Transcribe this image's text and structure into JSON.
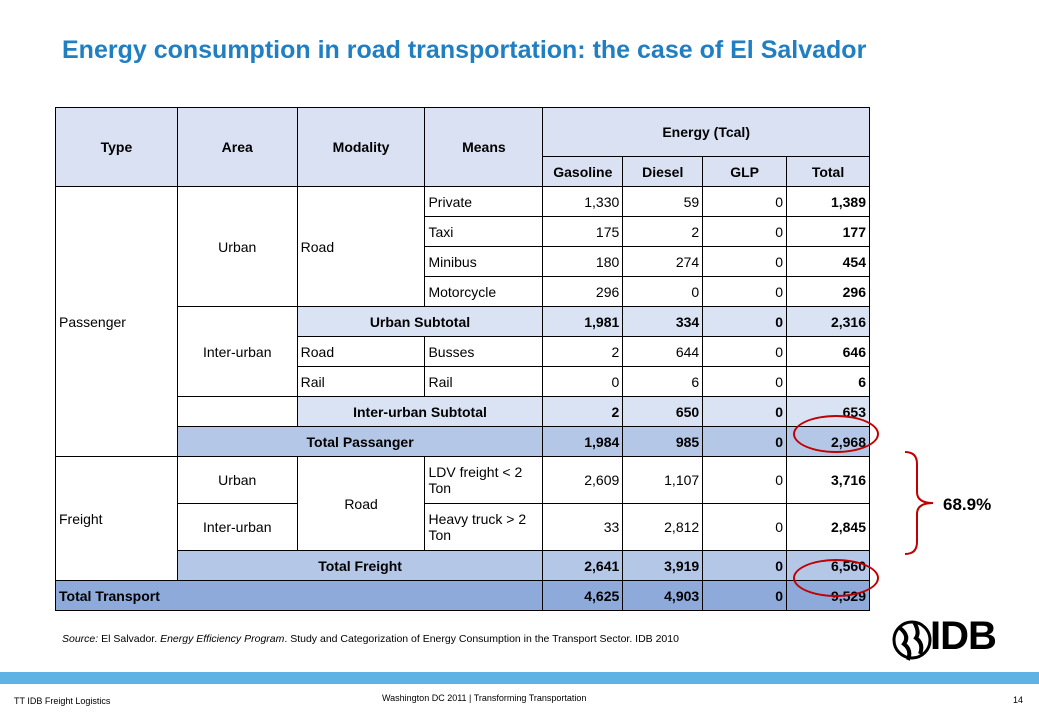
{
  "title": "Energy consumption in road transportation: the case of El Salvador",
  "table": {
    "headers": {
      "type": "Type",
      "area": "Area",
      "modality": "Modality",
      "means": "Means",
      "energy": "Energy (Tcal)",
      "gasoline": "Gasoline",
      "diesel": "Diesel",
      "glp": "GLP",
      "total": "Total"
    },
    "passenger": "Passenger",
    "urban": "Urban",
    "road": "Road",
    "inter_urban": "Inter-urban",
    "freight": "Freight",
    "rows": {
      "private": [
        "Private",
        "1,330",
        "59",
        "0",
        "1,389"
      ],
      "taxi": [
        "Taxi",
        "175",
        "2",
        "0",
        "177"
      ],
      "minibus": [
        "Minibus",
        "180",
        "274",
        "0",
        "454"
      ],
      "motorcycle": [
        "Motorcycle",
        "296",
        "0",
        "0",
        "296"
      ],
      "urban_subtotal": [
        "Urban Subtotal",
        "1,981",
        "334",
        "0",
        "2,316"
      ],
      "busses": [
        "Road",
        "Busses",
        "2",
        "644",
        "0",
        "646"
      ],
      "rail": [
        "Rail",
        "Rail",
        "0",
        "6",
        "0",
        "6"
      ],
      "inter_subtotal": [
        "Inter-urban Subtotal",
        "2",
        "650",
        "0",
        "653"
      ],
      "total_passanger": [
        "Total Passanger",
        "1,984",
        "985",
        "0",
        "2,968"
      ],
      "ldv": [
        "LDV freight < 2 Ton",
        "2,609",
        "1,107",
        "0",
        "3,716"
      ],
      "heavy": [
        "Heavy truck > 2 Ton",
        "33",
        "2,812",
        "0",
        "2,845"
      ],
      "total_freight": [
        "Total Freight",
        "2,641",
        "3,919",
        "0",
        "6,560"
      ],
      "total_transport": [
        "Total Transport",
        "4,625",
        "4,903",
        "0",
        "9,529"
      ]
    }
  },
  "annotation": {
    "share": "68.9%",
    "color": "#c00000"
  },
  "source": {
    "label": "Source:",
    "text1": " El Salvador. ",
    "italic": "Energy Efficiency Program",
    "text2": ". Study and Categorization of Energy Consumption in the Transport Sector. IDB 2010"
  },
  "logo": "IDB",
  "footer": {
    "left": "TT IDB Freight Logistics",
    "center": "Washington DC 2011 | Transforming Transportation",
    "page": "14"
  },
  "colors": {
    "title": "#1f7fc2",
    "header_bg": "#d9e1f2",
    "total_bg": "#b4c7e7",
    "grand_bg": "#8eaadb",
    "bar": "#5eb3e4"
  }
}
